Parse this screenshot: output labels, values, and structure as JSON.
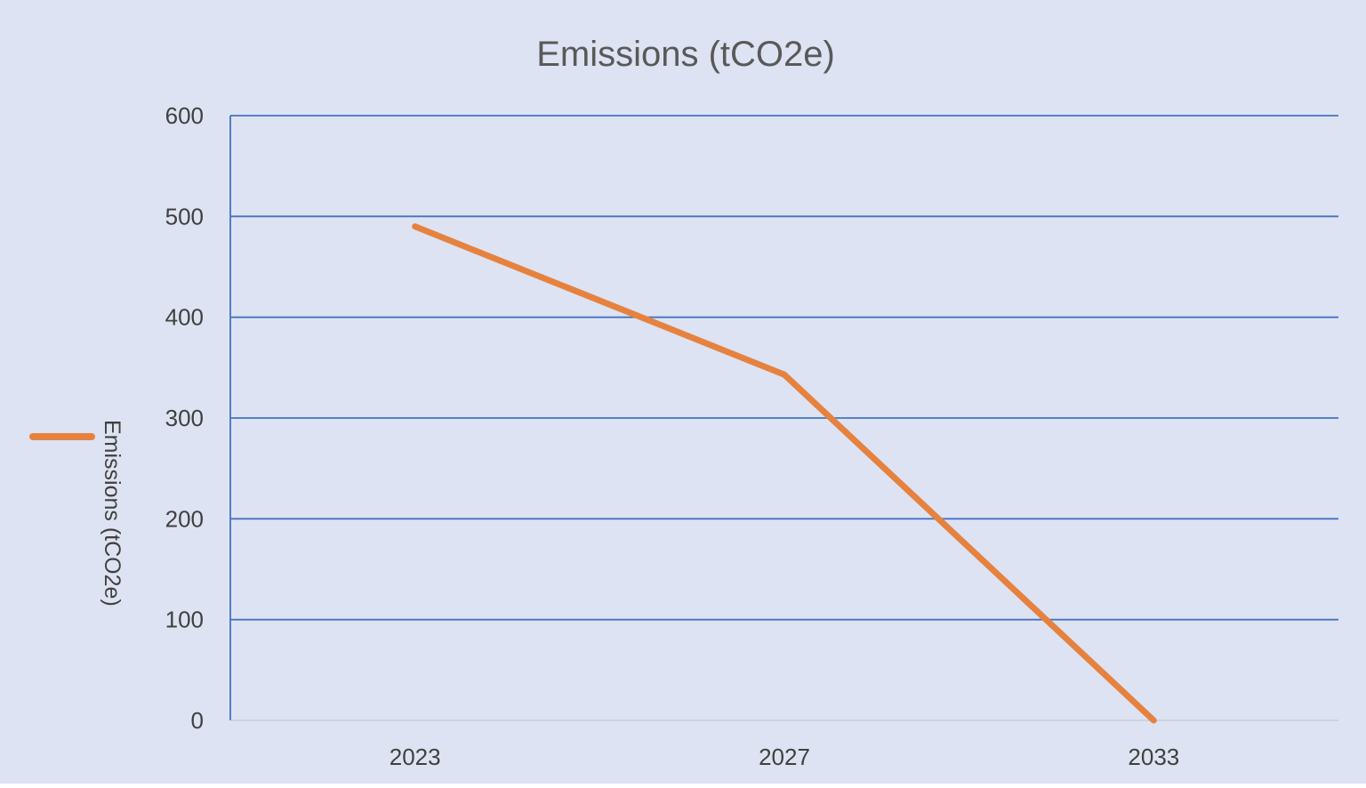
{
  "chart_data": {
    "type": "line",
    "title": "Emissions (tCO2e)",
    "xlabel": "",
    "ylabel": "",
    "categories": [
      "2023",
      "2027",
      "2033"
    ],
    "series": [
      {
        "name": "Emissions (tCO2e)",
        "values": [
          490,
          343,
          0
        ]
      }
    ],
    "ylim": [
      0,
      600
    ],
    "yticks": [
      "0",
      "100",
      "200",
      "300",
      "400",
      "500",
      "600"
    ],
    "grid": true,
    "legend_position": "left",
    "colors": {
      "background": "#dde3f2",
      "gridline": "#4472c4",
      "series": "#e6823f",
      "axis_text": "#404040",
      "title": "#595959"
    }
  }
}
